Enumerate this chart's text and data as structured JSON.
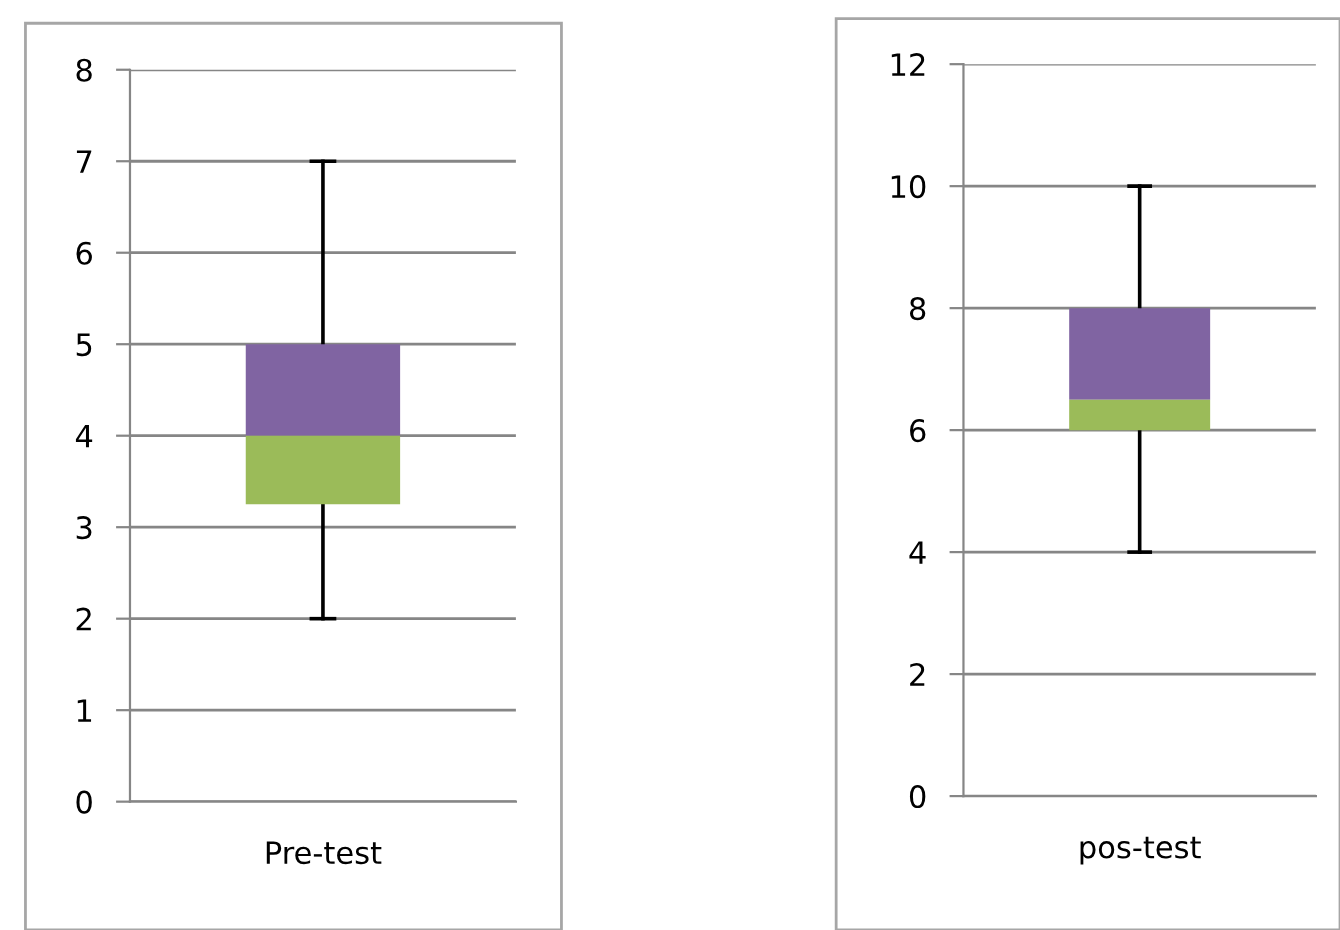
{
  "chart_data": [
    {
      "type": "box",
      "categories": [
        "Pre-test"
      ],
      "color": "#8064a2",
      "series": [
        {
          "color": "#9bbb59",
          "boxes": [
            {
              "low": 2,
              "q1": 3.25,
              "median": 4,
              "q3": 5,
              "high": 7
            }
          ]
        }
      ],
      "ylim": [
        0,
        8
      ],
      "yticks": [
        0,
        1,
        2,
        3,
        4,
        5,
        6,
        7,
        8
      ],
      "grid": "y"
    },
    {
      "type": "box",
      "categories": [
        "pos-test"
      ],
      "color": "#8064a2",
      "series": [
        {
          "color": "#9bbb59",
          "boxes": [
            {
              "low": 4,
              "q1": 6,
              "median": 6.5,
              "q3": 8,
              "high": 10
            }
          ]
        }
      ],
      "ylim": [
        0,
        12
      ],
      "yticks": [
        0,
        2,
        4,
        6,
        8,
        10,
        12
      ],
      "grid": "y"
    }
  ]
}
